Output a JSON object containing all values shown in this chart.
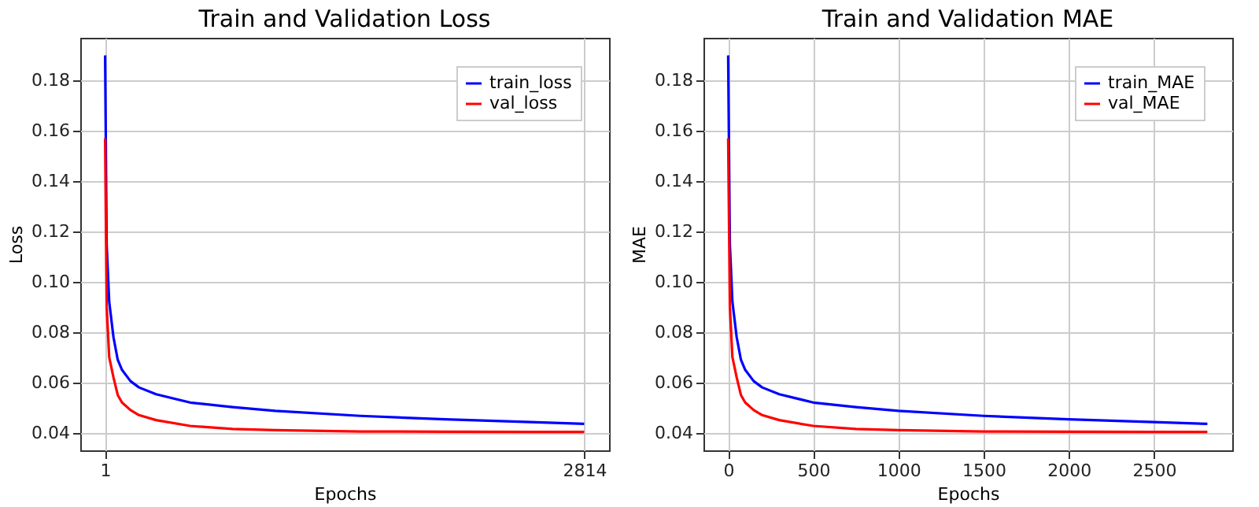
{
  "chart_data": [
    {
      "type": "line",
      "title": "Train and Validation Loss",
      "xlabel": "Epochs",
      "ylabel": "Loss",
      "x": [
        1,
        10,
        25,
        50,
        75,
        100,
        150,
        200,
        300,
        500,
        750,
        1000,
        1500,
        2000,
        2500,
        2814
      ],
      "series": [
        {
          "name": "train_loss",
          "color": "#0000ff",
          "values": [
            0.19,
            0.115,
            0.092,
            0.078,
            0.069,
            0.065,
            0.0605,
            0.058,
            0.0553,
            0.052,
            0.0502,
            0.0487,
            0.0467,
            0.0453,
            0.0442,
            0.0435
          ]
        },
        {
          "name": "val_loss",
          "color": "#ff0000",
          "values": [
            0.157,
            0.09,
            0.07,
            0.062,
            0.055,
            0.052,
            0.049,
            0.047,
            0.045,
            0.0427,
            0.0415,
            0.041,
            0.0405,
            0.0404,
            0.0403,
            0.0403
          ]
        }
      ],
      "xlim": [
        -145,
        2960
      ],
      "ylim": [
        0.033,
        0.197
      ],
      "xticks": [
        1,
        2814
      ],
      "yticks": [
        0.04,
        0.06,
        0.08,
        {
          "value": 0.1,
          "label": "0.10"
        },
        0.12,
        0.14,
        0.16,
        0.18
      ],
      "grid": true,
      "legend": "top right",
      "marker": "none",
      "line_style": "solid"
    },
    {
      "type": "line",
      "title": "Train and Validation MAE",
      "xlabel": "Epochs",
      "ylabel": "MAE",
      "x": [
        0,
        10,
        25,
        50,
        75,
        100,
        150,
        200,
        300,
        500,
        750,
        1000,
        1500,
        2000,
        2500,
        2814
      ],
      "series": [
        {
          "name": "train_MAE",
          "color": "#0000ff",
          "values": [
            0.19,
            0.115,
            0.092,
            0.078,
            0.069,
            0.065,
            0.0605,
            0.058,
            0.0553,
            0.052,
            0.0502,
            0.0487,
            0.0467,
            0.0453,
            0.0442,
            0.0435
          ]
        },
        {
          "name": "val_MAE",
          "color": "#ff0000",
          "values": [
            0.157,
            0.09,
            0.07,
            0.062,
            0.055,
            0.052,
            0.049,
            0.047,
            0.045,
            0.0427,
            0.0415,
            0.041,
            0.0405,
            0.0404,
            0.0403,
            0.0403
          ]
        }
      ],
      "xlim": [
        -145,
        2960
      ],
      "ylim": [
        0.033,
        0.197
      ],
      "xticks": [
        0,
        500,
        1000,
        1500,
        2000,
        2500
      ],
      "yticks": [
        0.04,
        0.06,
        0.08,
        {
          "value": 0.1,
          "label": "0.10"
        },
        0.12,
        0.14,
        0.16,
        0.18
      ],
      "grid": true,
      "legend": "top right",
      "marker": "none",
      "line_style": "solid"
    }
  ]
}
